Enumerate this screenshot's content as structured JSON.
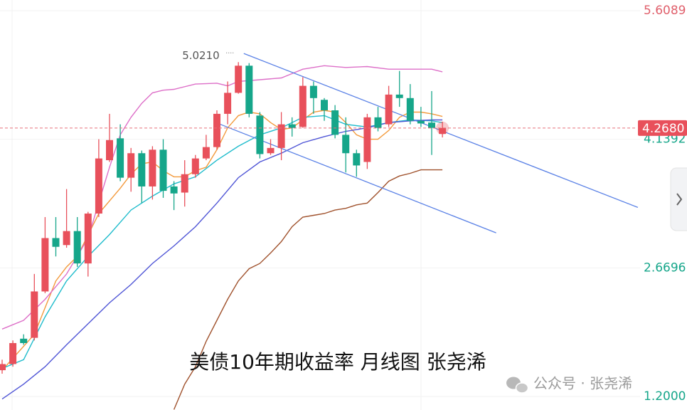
{
  "chart_data": {
    "type": "candlestick",
    "title": "美债10年期收益率 月线图 张尧浠",
    "watermark": "公众号 · 张尧浠",
    "open": [
      1.5,
      1.57,
      1.86,
      1.87,
      2.4,
      3.01,
      2.93,
      3.09,
      2.72,
      3.29,
      3.9,
      4.15,
      3.7,
      3.98,
      3.6,
      4.02,
      3.6,
      3.53,
      3.74,
      3.92,
      4.05,
      4.43,
      4.67,
      4.98,
      4.41,
      3.98,
      4.04,
      4.31,
      4.28,
      4.75,
      4.59,
      4.47,
      4.19,
      3.98,
      3.88,
      4.39,
      4.31,
      4.65,
      4.61,
      4.35,
      4.33,
      4.2
    ],
    "high": [
      1.62,
      1.84,
      1.91,
      2.6,
      3.25,
      3.25,
      3.57,
      3.25,
      3.31,
      4.14,
      4.43,
      4.31,
      4.04,
      4.01,
      4.06,
      4.14,
      3.66,
      3.9,
      3.96,
      4.19,
      4.47,
      4.8,
      5.021,
      5.01,
      4.45,
      4.14,
      4.45,
      4.39,
      4.85,
      4.8,
      4.61,
      4.53,
      4.39,
      4.02,
      4.43,
      4.51,
      4.75,
      4.92,
      4.77,
      4.51,
      4.69,
      4.34
    ],
    "low": [
      1.46,
      1.54,
      1.79,
      1.84,
      2.38,
      2.8,
      2.9,
      2.68,
      2.57,
      3.25,
      3.88,
      3.66,
      3.54,
      3.41,
      3.45,
      3.47,
      3.33,
      3.37,
      3.7,
      3.9,
      4.02,
      4.31,
      4.66,
      4.39,
      3.92,
      3.96,
      3.9,
      4.17,
      4.27,
      4.43,
      4.35,
      4.15,
      3.76,
      3.71,
      3.8,
      4.23,
      4.28,
      4.51,
      4.31,
      4.28,
      3.96,
      4.16
    ],
    "close": [
      1.57,
      1.81,
      1.81,
      2.4,
      3.01,
      2.91,
      3.09,
      2.72,
      3.29,
      3.92,
      4.13,
      3.7,
      3.98,
      3.6,
      4.02,
      3.55,
      3.52,
      3.74,
      3.92,
      4.05,
      4.43,
      4.67,
      4.98,
      4.43,
      3.97,
      4.04,
      4.31,
      4.27,
      4.75,
      4.61,
      4.47,
      4.19,
      3.98,
      3.84,
      4.39,
      4.27,
      4.65,
      4.61,
      4.35,
      4.32,
      4.27,
      4.268
    ],
    "colors": {
      "up": "#e8505b",
      "down": "#16a68a"
    },
    "ylim": [
      1.045,
      5.731
    ],
    "yticks": [
      5.6089,
      4.1392,
      2.6696,
      {
        "value": 1.2,
        "label": "1.2000"
      }
    ],
    "ytick_colors": [
      "#e0606c",
      "#16a68a",
      "#16a68a",
      "#16a68a"
    ],
    "last_price": {
      "value": 4.268,
      "label": "4.2680"
    },
    "high_annotation": {
      "value": 5.021,
      "label": "5.0210"
    },
    "lines": [
      {
        "color": "#f39a3c",
        "x": [
          0,
          3,
          5,
          6,
          7,
          9,
          11,
          12,
          13,
          14,
          15,
          16,
          17,
          18,
          19,
          20,
          21,
          22,
          23,
          24,
          25,
          26,
          27,
          28,
          29,
          30,
          31,
          32,
          33,
          34,
          35,
          36,
          37,
          38,
          39,
          40,
          41
        ],
        "values": [
          1.5,
          1.91,
          2.52,
          2.68,
          2.8,
          3.29,
          3.58,
          3.74,
          3.86,
          3.88,
          3.78,
          3.71,
          3.71,
          3.78,
          3.82,
          4.02,
          4.27,
          4.41,
          4.45,
          4.43,
          4.33,
          4.25,
          4.27,
          4.36,
          4.45,
          4.47,
          4.45,
          4.33,
          4.19,
          4.14,
          4.14,
          4.24,
          4.39,
          4.45,
          4.45,
          4.43,
          4.4
        ]
      },
      {
        "color": "#1fbccc",
        "x": [
          0,
          2,
          4,
          6,
          8,
          10,
          12,
          14,
          16,
          18,
          20,
          22,
          24,
          26,
          28,
          30,
          32,
          34,
          36,
          38,
          40,
          41
        ],
        "values": [
          1.52,
          1.62,
          2.11,
          2.52,
          2.8,
          3.05,
          3.33,
          3.49,
          3.63,
          3.71,
          3.9,
          4.06,
          4.19,
          4.27,
          4.39,
          4.41,
          4.31,
          4.28,
          4.33,
          4.36,
          4.35,
          4.33
        ]
      },
      {
        "color": "#4f55d6",
        "x": [
          0,
          2,
          4,
          6,
          8,
          10,
          12,
          14,
          16,
          18,
          20,
          22,
          24,
          26,
          28,
          30,
          32,
          34,
          36,
          38,
          40,
          41
        ],
        "values": [
          1.17,
          1.34,
          1.54,
          1.79,
          2.03,
          2.27,
          2.48,
          2.72,
          2.92,
          3.14,
          3.41,
          3.7,
          3.88,
          3.98,
          4.1,
          4.17,
          4.23,
          4.27,
          4.33,
          4.35,
          4.36,
          4.36
        ]
      },
      {
        "color": "#a0522d",
        "x": [
          16,
          17,
          18,
          19,
          20,
          21,
          22,
          23,
          24,
          25,
          26,
          27,
          28,
          29,
          30,
          31,
          32,
          33,
          34,
          35,
          36,
          37,
          38,
          39,
          40,
          41
        ],
        "values": [
          1.05,
          1.34,
          1.54,
          1.83,
          2.07,
          2.31,
          2.52,
          2.66,
          2.72,
          2.84,
          2.97,
          3.14,
          3.25,
          3.27,
          3.29,
          3.33,
          3.35,
          3.39,
          3.41,
          3.53,
          3.66,
          3.72,
          3.75,
          3.79,
          3.79,
          3.79
        ]
      },
      {
        "color": "#dd6fc8",
        "x": [
          0,
          2,
          4,
          6,
          8,
          10,
          11,
          12,
          13,
          14,
          15,
          16,
          18,
          20,
          21,
          22,
          24,
          26,
          27,
          28,
          30,
          32,
          34,
          36,
          38,
          40,
          41
        ],
        "values": [
          1.97,
          2.07,
          2.31,
          2.6,
          3.01,
          3.82,
          4.19,
          4.39,
          4.55,
          4.67,
          4.7,
          4.71,
          4.77,
          4.78,
          4.75,
          4.8,
          4.82,
          4.84,
          4.89,
          4.94,
          4.98,
          4.96,
          4.97,
          4.94,
          4.94,
          4.94,
          4.91
        ]
      }
    ],
    "trend_lines": [
      {
        "color": "#5b82e6",
        "x": [
          22.5,
          59.2
        ],
        "values": [
          5.12,
          3.36
        ]
      },
      {
        "color": "#5b82e6",
        "x": [
          19.9,
          46.0
        ],
        "values": [
          4.33,
          3.07
        ]
      }
    ]
  }
}
